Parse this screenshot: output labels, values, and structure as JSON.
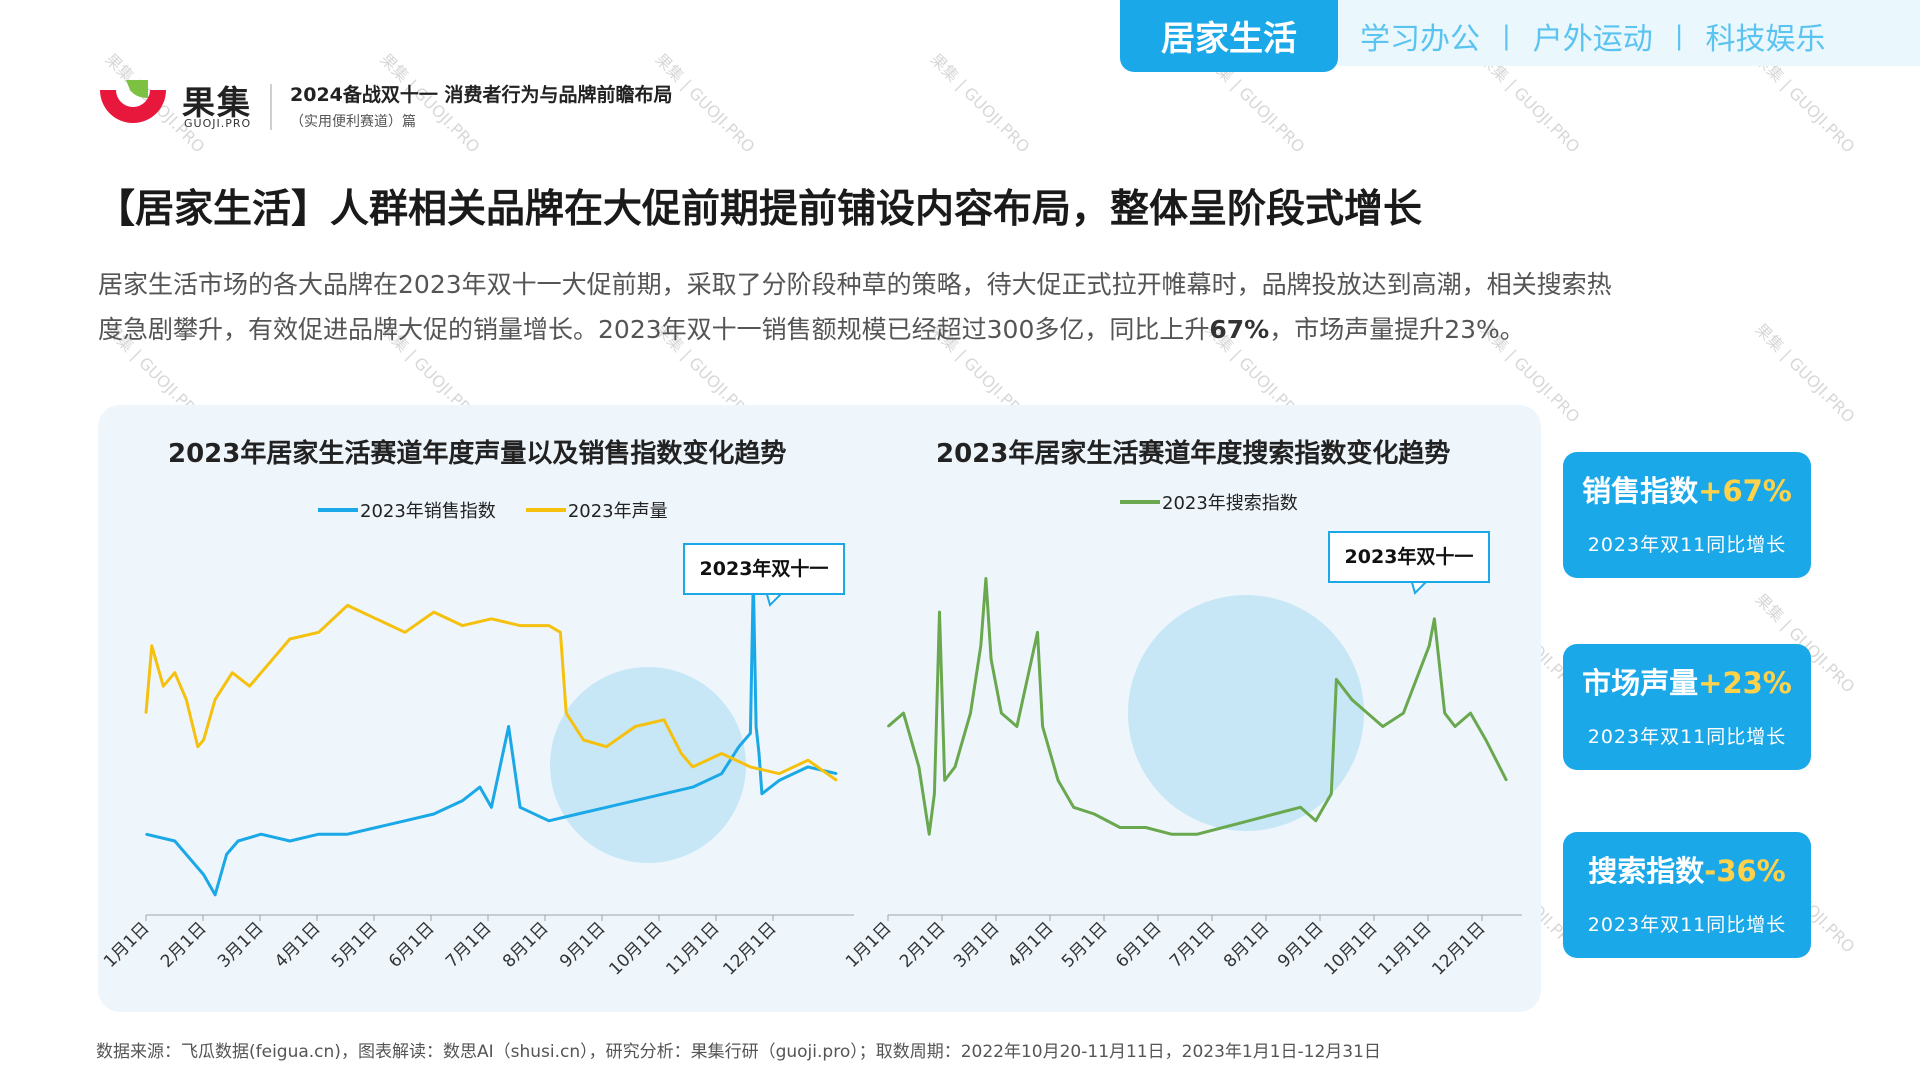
{
  "nav": {
    "active": "居家生活",
    "items": [
      "学习办公",
      "户外运动",
      "科技娱乐"
    ],
    "separator": "|"
  },
  "logo": {
    "name": "果集",
    "domain": "GUOJI.PRO"
  },
  "report": {
    "title": "2024备战双十一 消费者行为与品牌前瞻布局",
    "subtitle": "（实用便利赛道）篇"
  },
  "headline": "【居家生活】人群相关品牌在大促前期提前铺设内容布局，整体呈阶段式增长",
  "intro": {
    "line1": "居家生活市场的各大品牌在2023年双十一大促前期，采取了分阶段种草的策略，待大促正式拉开帷幕时，品牌投放达到高潮，相关搜索热",
    "line2_a": "度急剧攀升，有效促进品牌大促的销量增长。2023年双十一销售额规模已经超过300多亿，同比上升",
    "line2_bold": "67%",
    "line2_b": "，市场声量提升23%。"
  },
  "colors": {
    "accent": "#1ba8e8",
    "sales": "#1aa8e6",
    "volume": "#f5c10e",
    "search": "#6aa84f",
    "highlight": "#ffd24a"
  },
  "chart_data": [
    {
      "type": "line",
      "title": "2023年居家生活赛道年度声量以及销售指数变化趋势",
      "x_ticks": [
        "1月1日",
        "2月1日",
        "3月1日",
        "4月1日",
        "5月1日",
        "6月1日",
        "7月1日",
        "8月1日",
        "9月1日",
        "10月1日",
        "11月1日",
        "12月1日"
      ],
      "annotation": "2023年双十一",
      "series": [
        {
          "name": "2023年销售指数",
          "color": "#1aa8e6",
          "x": [
            0,
            0.5,
            1,
            1.2,
            1.4,
            1.6,
            2,
            2.5,
            3,
            3.5,
            4,
            4.5,
            5,
            5.5,
            5.8,
            6,
            6.3,
            6.5,
            7,
            7.5,
            8,
            8.5,
            9,
            9.5,
            10,
            10.3,
            10.5,
            10.55,
            10.6,
            10.65,
            10.7,
            11,
            11.5,
            12
          ],
          "values": [
            12,
            11,
            6,
            3,
            9,
            11,
            12,
            11,
            12,
            12,
            13,
            14,
            15,
            17,
            19,
            16,
            28,
            16,
            14,
            15,
            16,
            17,
            18,
            19,
            21,
            25,
            27,
            50,
            28,
            24,
            18,
            20,
            22,
            21
          ]
        },
        {
          "name": "2023年声量",
          "color": "#f5c10e",
          "x": [
            0,
            0.1,
            0.3,
            0.5,
            0.7,
            0.9,
            1.0,
            1.2,
            1.5,
            1.8,
            2.0,
            2.5,
            3.0,
            3.5,
            4.0,
            4.5,
            5.0,
            5.5,
            6.0,
            6.5,
            7.0,
            7.2,
            7.3,
            7.6,
            8.0,
            8.5,
            9.0,
            9.3,
            9.5,
            10.0,
            10.5,
            11.0,
            11.5,
            12.0
          ],
          "values": [
            30,
            40,
            34,
            36,
            32,
            25,
            26,
            32,
            36,
            34,
            36,
            41,
            42,
            46,
            44,
            42,
            45,
            43,
            44,
            43,
            43,
            42,
            30,
            26,
            25,
            28,
            29,
            24,
            22,
            24,
            22,
            21,
            23,
            20
          ]
        }
      ]
    },
    {
      "type": "line",
      "title": "2023年居家生活赛道年度搜索指数变化趋势",
      "x_ticks": [
        "1月1日",
        "2月1日",
        "3月1日",
        "4月1日",
        "5月1日",
        "6月1日",
        "7月1日",
        "8月1日",
        "9月1日",
        "10月1日",
        "11月1日",
        "12月1日"
      ],
      "annotation": "2023年双十一",
      "series": [
        {
          "name": "2023年搜索指数",
          "color": "#6aa84f",
          "x": [
            0,
            0.3,
            0.6,
            0.8,
            0.9,
            1.0,
            1.1,
            1.3,
            1.6,
            1.8,
            1.9,
            2.0,
            2.2,
            2.5,
            2.9,
            3.0,
            3.3,
            3.6,
            4.0,
            4.5,
            5.0,
            5.5,
            6.0,
            6.5,
            7.0,
            7.5,
            8.0,
            8.3,
            8.6,
            8.7,
            9.0,
            9.3,
            9.6,
            10.0,
            10.3,
            10.5,
            10.6,
            10.8,
            11.0,
            11.3,
            11.6,
            12.0
          ],
          "values": [
            28,
            30,
            22,
            12,
            18,
            45,
            20,
            22,
            30,
            40,
            50,
            38,
            30,
            28,
            42,
            28,
            20,
            16,
            15,
            13,
            13,
            12,
            12,
            13,
            14,
            15,
            16,
            14,
            18,
            35,
            32,
            30,
            28,
            30,
            36,
            40,
            44,
            30,
            28,
            30,
            26,
            20
          ]
        }
      ]
    }
  ],
  "kpis": [
    {
      "label": "销售指数",
      "value": "+67%",
      "sub": "2023年双11同比增长"
    },
    {
      "label": "市场声量",
      "value": "+23%",
      "sub": "2023年双11同比增长"
    },
    {
      "label": "搜索指数",
      "value": "-36%",
      "sub": "2023年双11同比增长"
    }
  ],
  "source": "数据来源：飞瓜数据(feigua.cn)，图表解读：数思AI（shusi.cn），研究分析：果集行研（guoji.pro）；取数周期：2022年10月20-11月11日，2023年1月1日-12月31日"
}
